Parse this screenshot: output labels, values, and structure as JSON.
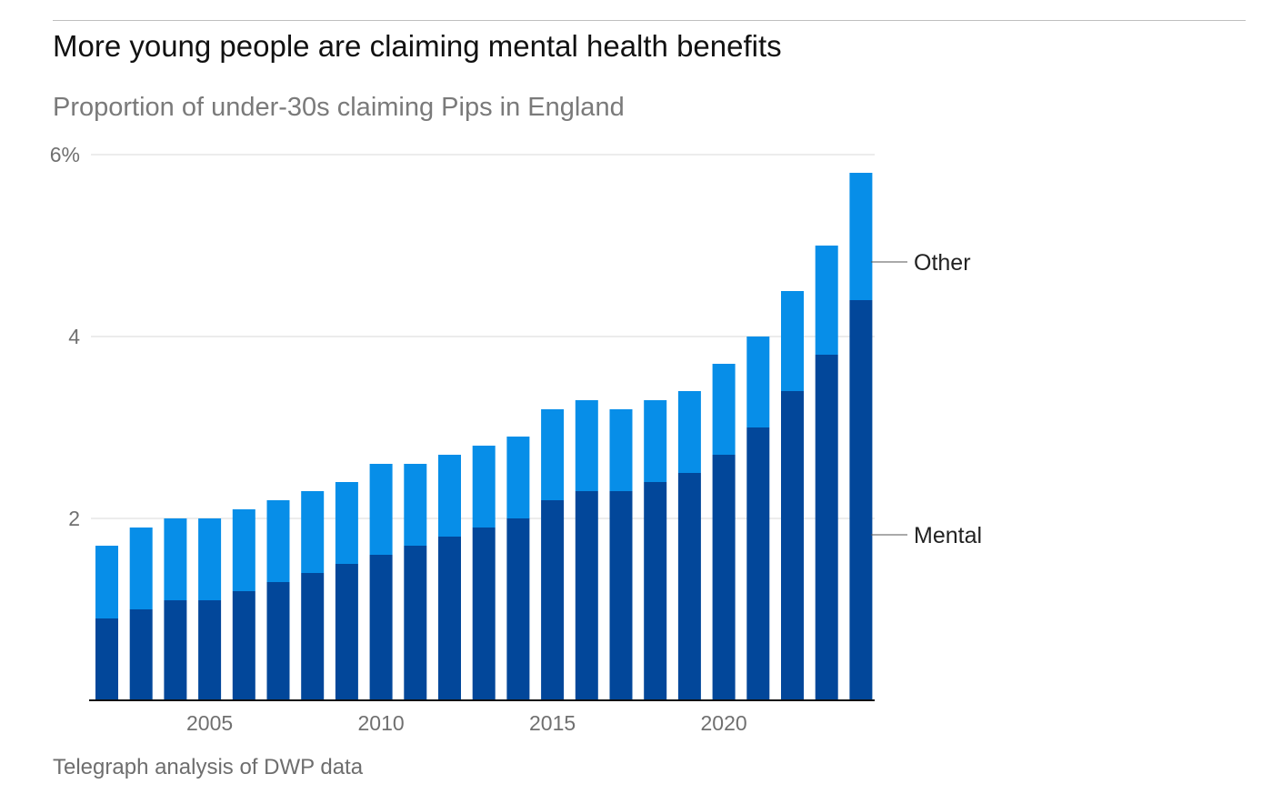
{
  "header": {
    "title": "More young people are claiming mental health benefits",
    "subtitle": "Proportion of under-30s claiming Pips in England"
  },
  "footer": {
    "source": "Telegraph analysis of DWP data"
  },
  "chart_data": {
    "type": "bar",
    "stacked": true,
    "title": "More young people are claiming mental health benefits",
    "subtitle": "Proportion of under-30s claiming Pips in England",
    "xlabel": "",
    "ylabel": "",
    "ylim": [
      0,
      6
    ],
    "y_ticks": [
      {
        "value": 2,
        "label": "2"
      },
      {
        "value": 4,
        "label": "4"
      },
      {
        "value": 6,
        "label": "6%"
      }
    ],
    "x_ticks": [
      {
        "year": 2005,
        "label": "2005"
      },
      {
        "year": 2010,
        "label": "2010"
      },
      {
        "year": 2015,
        "label": "2015"
      },
      {
        "year": 2020,
        "label": "2020"
      }
    ],
    "grid": true,
    "legend_placement": "right, direct labels",
    "categories": [
      2002,
      2003,
      2004,
      2005,
      2006,
      2007,
      2008,
      2009,
      2010,
      2011,
      2012,
      2013,
      2014,
      2015,
      2016,
      2017,
      2018,
      2019,
      2020,
      2021,
      2022,
      2023,
      2024
    ],
    "series": [
      {
        "name": "Mental",
        "color": "#02479a",
        "values": [
          0.9,
          1.0,
          1.1,
          1.1,
          1.2,
          1.3,
          1.4,
          1.5,
          1.6,
          1.7,
          1.8,
          1.9,
          2.0,
          2.2,
          2.3,
          2.3,
          2.4,
          2.5,
          2.7,
          3.0,
          3.4,
          3.8,
          4.4
        ]
      },
      {
        "name": "Other",
        "color": "#078ee8",
        "values": [
          0.8,
          0.9,
          0.9,
          0.9,
          0.9,
          0.9,
          0.9,
          0.9,
          1.0,
          0.9,
          0.9,
          0.9,
          0.9,
          1.0,
          1.0,
          0.9,
          0.9,
          0.9,
          1.0,
          1.0,
          1.1,
          1.2,
          1.4
        ]
      }
    ]
  }
}
